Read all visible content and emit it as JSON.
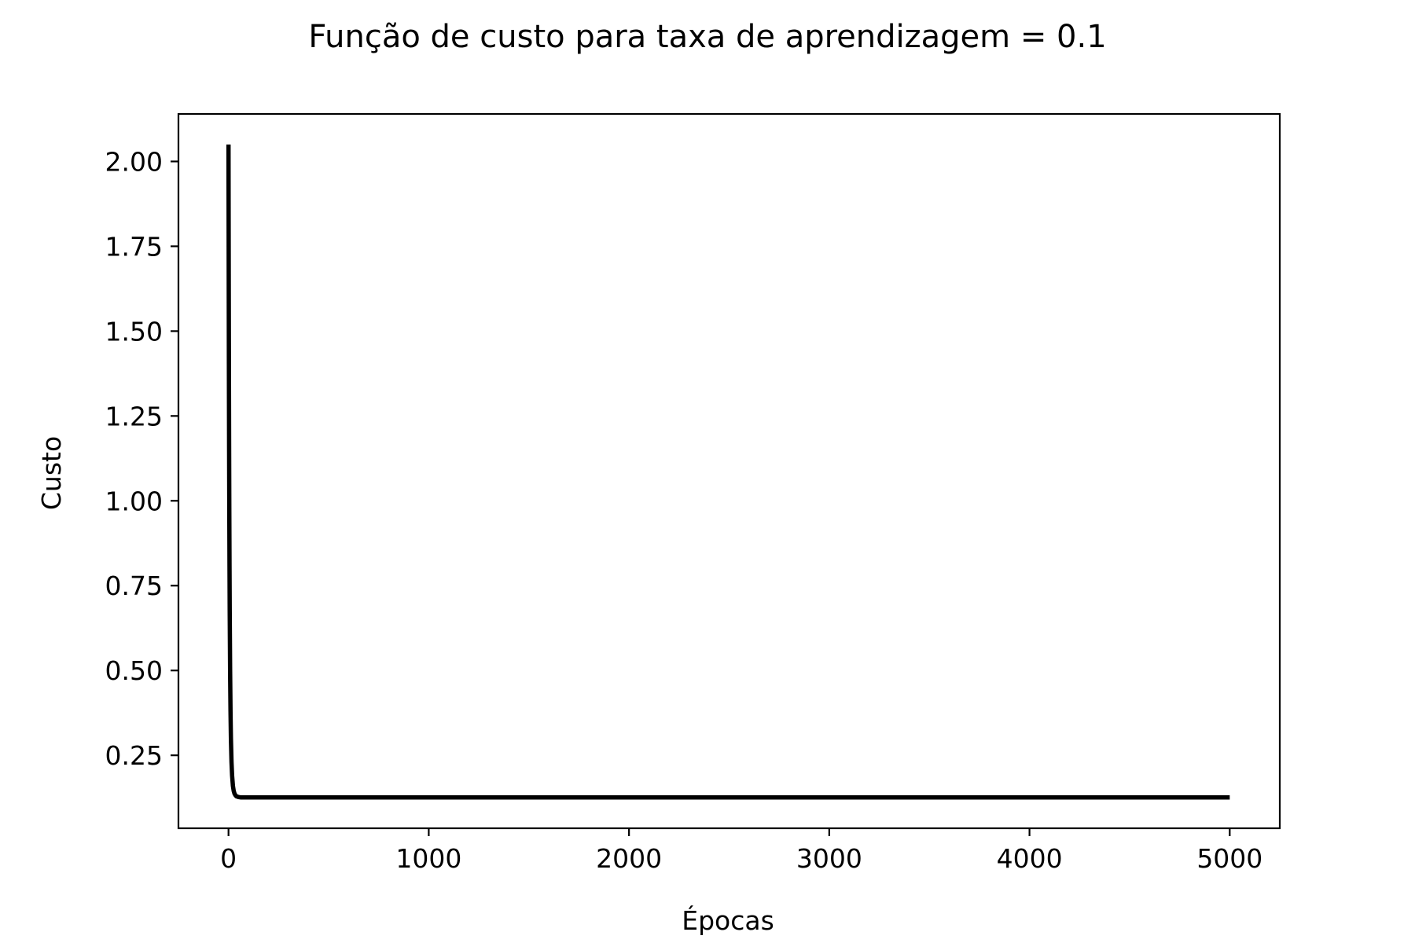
{
  "chart_data": {
    "type": "line",
    "title": "Função de custo para taxa de aprendizagem = 0.1",
    "xlabel": "Épocas",
    "ylabel": "Custo",
    "xlim": [
      -250,
      5250
    ],
    "ylim": [
      0.035,
      2.14
    ],
    "xticks": [
      0,
      1000,
      2000,
      3000,
      4000,
      5000
    ],
    "xtick_labels": [
      "0",
      "1000",
      "2000",
      "3000",
      "4000",
      "5000"
    ],
    "yticks": [
      0.25,
      0.5,
      0.75,
      1.0,
      1.25,
      1.5,
      1.75,
      2.0
    ],
    "ytick_labels": [
      "0.25",
      "0.50",
      "0.75",
      "1.00",
      "1.25",
      "1.50",
      "1.75",
      "2.00"
    ],
    "grid": false,
    "line_color": "#000000",
    "series": [
      {
        "x": [
          0,
          1,
          2,
          3,
          4,
          5,
          6,
          8,
          10,
          12,
          15,
          18,
          22,
          26,
          30,
          35,
          40,
          50,
          60,
          80,
          100,
          200,
          500,
          1000,
          2000,
          3000,
          4000,
          5000
        ],
        "y": [
          2.05,
          1.7,
          1.4,
          1.16,
          0.97,
          0.81,
          0.68,
          0.5,
          0.38,
          0.3,
          0.23,
          0.19,
          0.16,
          0.145,
          0.137,
          0.132,
          0.129,
          0.127,
          0.126,
          0.126,
          0.126,
          0.126,
          0.126,
          0.126,
          0.126,
          0.126,
          0.126,
          0.126
        ]
      }
    ]
  }
}
